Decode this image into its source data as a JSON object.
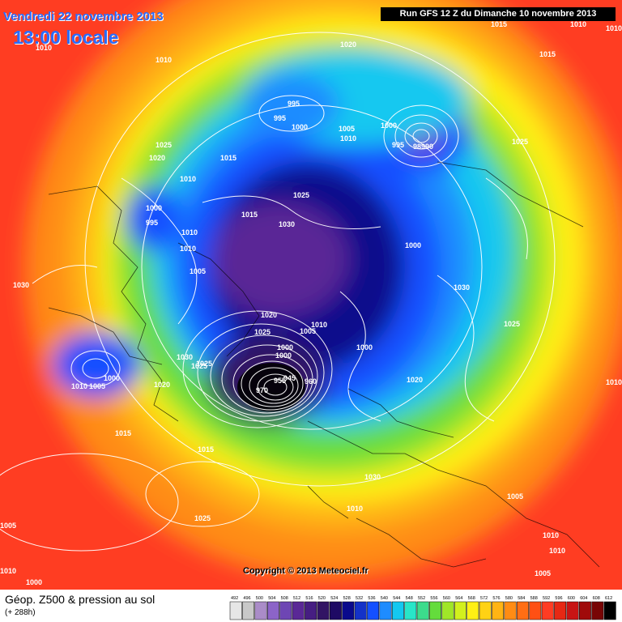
{
  "header": {
    "date": "Vendredi 22 novembre 2013",
    "time": "13:00 locale",
    "run": "Run GFS 12 Z du Dimanche 10 novembre 2013"
  },
  "map": {
    "type": "polar stereographic geopotential / pressure map",
    "pressure_labels": [
      "1010",
      "1010",
      "1020",
      "1015",
      "1015",
      "1010",
      "995",
      "995",
      "1000",
      "1005",
      "1010",
      "1000",
      "995",
      "98990",
      "1025",
      "1025",
      "1020",
      "1015",
      "1010",
      "1025",
      "1015",
      "1030",
      "1000",
      "1010",
      "995",
      "1010",
      "1005",
      "1000",
      "1020",
      "1025",
      "1030",
      "1030",
      "1020",
      "1025",
      "1010",
      "1005",
      "1000",
      "1025",
      "1030",
      "1025",
      "1000",
      "1000",
      "945",
      "955",
      "960",
      "970",
      "1010",
      "1005",
      "1000",
      "1020",
      "1015",
      "1015",
      "1025",
      "1030",
      "1010",
      "1005",
      "1010",
      "1010",
      "1005",
      "1005",
      "1000",
      "1010",
      "1010",
      "1010",
      "1010"
    ],
    "colors": {
      "outer": "#ff3c23",
      "orange": "#ff8c14",
      "yellow": "#fff014",
      "green": "#64dc3c",
      "cyan": "#14c8f0",
      "blue": "#1450ff",
      "navy": "#0a0a8c",
      "purple": "#8c14aa",
      "black": "#000000",
      "isobar": "#ffffff"
    }
  },
  "copyright": "Copyright © 2013 Meteociel.fr",
  "footer": {
    "title": "Géop. Z500 & pression au sol",
    "subtitle": "(+ 288h)"
  },
  "legend": {
    "values": [
      "492",
      "496",
      "500",
      "504",
      "508",
      "512",
      "516",
      "520",
      "524",
      "528",
      "532",
      "536",
      "540",
      "544",
      "548",
      "552",
      "556",
      "560",
      "564",
      "568",
      "572",
      "576",
      "580",
      "584",
      "588",
      "592",
      "596",
      "600",
      "604",
      "608",
      "612"
    ],
    "colors": [
      "#e6e6e6",
      "#c8c8c8",
      "#aa8cc8",
      "#8c64c8",
      "#6e46b4",
      "#5a2896",
      "#461e82",
      "#321464",
      "#1e0a64",
      "#0a0a8c",
      "#1432c8",
      "#1450ff",
      "#1e8cff",
      "#14c8f0",
      "#28e6c8",
      "#3cdc8c",
      "#64dc3c",
      "#a0e628",
      "#d2f01e",
      "#fff014",
      "#ffd214",
      "#ffb414",
      "#ff8c14",
      "#ff6e14",
      "#ff5014",
      "#ff3c23",
      "#e62814",
      "#c81414",
      "#a00a0a",
      "#780505",
      "#000000"
    ]
  }
}
